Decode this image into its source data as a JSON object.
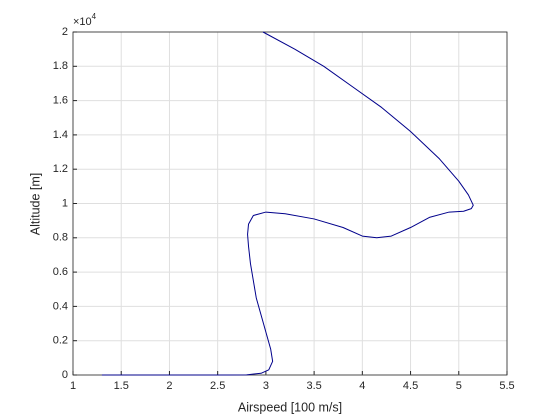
{
  "chart_data": {
    "type": "line",
    "xlabel": "Airspeed [100 m/s]",
    "ylabel": "Altitude [m]",
    "y_multiplier": {
      "base": "×10",
      "power": "4"
    },
    "x": [
      1.3,
      2.0,
      2.6,
      2.8,
      2.95,
      3.03,
      3.07,
      3.05,
      3.0,
      2.95,
      2.9,
      2.87,
      2.84,
      2.82,
      2.81,
      2.82,
      2.87,
      3.0,
      3.2,
      3.5,
      3.8,
      4.0,
      4.15,
      4.3,
      4.5,
      4.7,
      4.9,
      5.05,
      5.13,
      5.15,
      5.1,
      5.0,
      4.8,
      4.5,
      4.2,
      3.9,
      3.6,
      3.3,
      2.97
    ],
    "values": [
      0,
      0,
      0,
      10,
      100,
      300,
      800,
      1500,
      2500,
      3500,
      4500,
      5500,
      6500,
      7500,
      8200,
      8800,
      9300,
      9500,
      9400,
      9100,
      8600,
      8100,
      8000,
      8100,
      8600,
      9200,
      9500,
      9550,
      9700,
      9900,
      10500,
      11300,
      12600,
      14200,
      15600,
      16800,
      18000,
      19000,
      20000
    ],
    "color": "#00008b",
    "xlim": [
      1,
      5.5
    ],
    "xticks": [
      1,
      1.5,
      2,
      2.5,
      3,
      3.5,
      4,
      4.5,
      5,
      5.5
    ],
    "ylim": [
      0,
      20000
    ],
    "yticks": [
      {
        "value": 0,
        "label": "0"
      },
      {
        "value": 2000,
        "label": "0.2"
      },
      {
        "value": 4000,
        "label": "0.4"
      },
      {
        "value": 6000,
        "label": "0.6"
      },
      {
        "value": 8000,
        "label": "0.8"
      },
      {
        "value": 10000,
        "label": "1"
      },
      {
        "value": 12000,
        "label": "1.2"
      },
      {
        "value": 14000,
        "label": "1.4"
      },
      {
        "value": 16000,
        "label": "1.6"
      },
      {
        "value": 18000,
        "label": "1.8"
      },
      {
        "value": 20000,
        "label": "2"
      }
    ],
    "grid": true
  }
}
